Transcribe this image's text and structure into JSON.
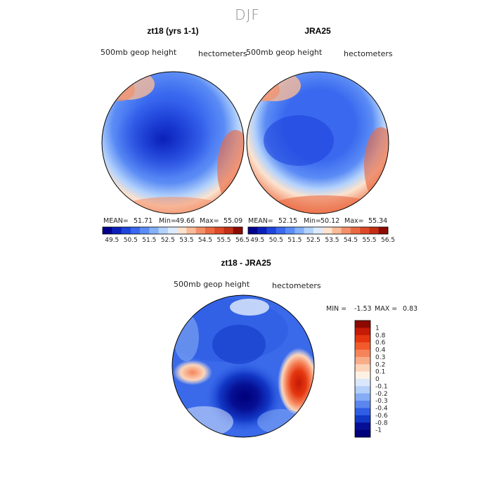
{
  "season": "DJF",
  "chart_data": [
    {
      "type": "heatmap",
      "title": "zt18 (yrs 1-1)",
      "variable": "500mb geop height",
      "units": "hectometers",
      "stats": {
        "mean_label": "MEAN=",
        "mean": "51.71",
        "min_label": "Min=",
        "min": "49.66",
        "max_label": "Max=",
        "max": "55.09"
      },
      "projection": "north polar stereographic",
      "colorbar": {
        "orientation": "horizontal",
        "ticks": [
          "49.5",
          "50.5",
          "51.5",
          "52.5",
          "53.5",
          "54.5",
          "55.5",
          "56.5"
        ],
        "colors": [
          "#00008c",
          "#0a1fb8",
          "#1e44dc",
          "#3a68ef",
          "#5b8cf5",
          "#85b0fa",
          "#b3d2fc",
          "#dceafc",
          "#fbe3cf",
          "#f9bb98",
          "#f3906a",
          "#ea6a44",
          "#de4a28",
          "#c22f14",
          "#8c0a00"
        ]
      }
    },
    {
      "type": "heatmap",
      "title": "JRA25",
      "variable": "500mb geop height",
      "units": "hectometers",
      "stats": {
        "mean_label": "MEAN=",
        "mean": "52.15",
        "min_label": "Min=",
        "min": "50.12",
        "max_label": "Max=",
        "max": "55.34"
      },
      "projection": "north polar stereographic",
      "colorbar": {
        "orientation": "horizontal",
        "ticks": [
          "49.5",
          "50.5",
          "51.5",
          "52.5",
          "53.5",
          "54.5",
          "55.5",
          "56.5"
        ],
        "colors": [
          "#00008c",
          "#0a1fb8",
          "#1e44dc",
          "#3a68ef",
          "#5b8cf5",
          "#85b0fa",
          "#b3d2fc",
          "#dceafc",
          "#fbe3cf",
          "#f9bb98",
          "#f3906a",
          "#ea6a44",
          "#de4a28",
          "#c22f14",
          "#8c0a00"
        ]
      }
    },
    {
      "type": "heatmap",
      "title": "zt18 - JRA25",
      "variable": "500mb geop height",
      "units": "hectometers",
      "stats": {
        "min_label": "MIN =",
        "min": "-1.53",
        "max_label": "MAX =",
        "max": "0.83"
      },
      "projection": "north polar stereographic",
      "colorbar": {
        "orientation": "vertical",
        "ticks": [
          "1",
          "0.8",
          "0.6",
          "0.4",
          "0.3",
          "0.2",
          "0.1",
          "0",
          "-0.1",
          "-0.2",
          "-0.3",
          "-0.4",
          "-0.6",
          "-0.8",
          "-1"
        ],
        "colors": [
          "#8c0a00",
          "#c41a06",
          "#e4360f",
          "#f25a2c",
          "#f5845a",
          "#f8ac88",
          "#fbd4ba",
          "#fdf1e4",
          "#dbe8fb",
          "#b4cff8",
          "#85acf4",
          "#5b86ee",
          "#2f5ee4",
          "#1238c6",
          "#060f94",
          "#00007a"
        ]
      }
    }
  ]
}
